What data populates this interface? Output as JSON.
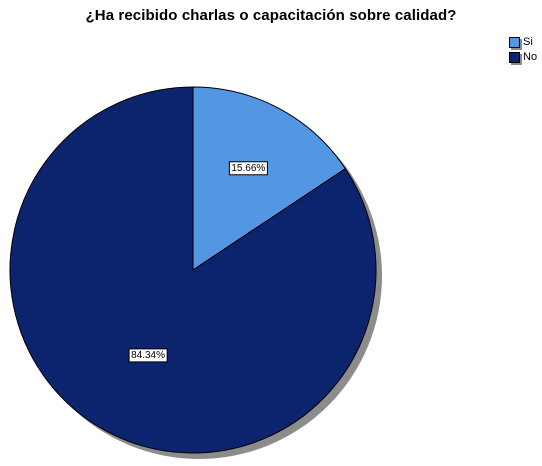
{
  "chart_data": {
    "type": "pie",
    "title": "¿Ha recibido charlas o capacitación sobre calidad?",
    "categories": [
      "Si",
      "No"
    ],
    "values": [
      15.66,
      84.34
    ],
    "data_labels": [
      "15.66%",
      "84.34%"
    ],
    "colors": [
      "#5397e3",
      "#0c236e"
    ],
    "start_angle_deg": 0,
    "direction": "clockwise",
    "legend": {
      "placement": "top-right",
      "entries": [
        "Si",
        "No"
      ]
    },
    "grid": false
  }
}
